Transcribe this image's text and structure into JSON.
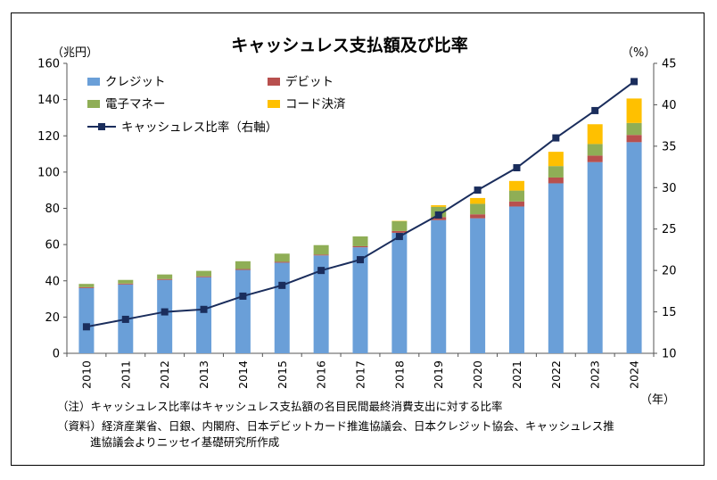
{
  "chart_data": {
    "type": "bar",
    "stacked": true,
    "title": "キャッシュレス支払額及び比率",
    "ylabel_left": "（兆円）",
    "ylabel_right": "（%）",
    "xlabel": "（年）",
    "categories": [
      "2010",
      "2011",
      "2012",
      "2013",
      "2014",
      "2015",
      "2016",
      "2017",
      "2018",
      "2019",
      "2020",
      "2021",
      "2022",
      "2023",
      "2024"
    ],
    "ylim": [
      0,
      160
    ],
    "yticks": [
      0,
      20,
      40,
      60,
      80,
      100,
      120,
      140,
      160
    ],
    "y2lim": [
      10,
      45
    ],
    "y2ticks": [
      10,
      15,
      20,
      25,
      30,
      35,
      40,
      45
    ],
    "grid": false,
    "legend_position": "top-left",
    "series": [
      {
        "name": "クレジット",
        "type": "bar",
        "color": "#6a9fd8",
        "values": [
          36,
          38,
          40.5,
          42,
          46,
          50,
          54,
          58.5,
          66.5,
          73.5,
          74.5,
          81,
          93.8,
          105.5,
          116.5
        ]
      },
      {
        "name": "デビット",
        "type": "bar",
        "color": "#b8504e",
        "values": [
          0.5,
          0.5,
          0.5,
          0.5,
          0.5,
          0.5,
          0.5,
          0.6,
          1,
          1.7,
          2.2,
          2.8,
          3.2,
          3.6,
          4
        ]
      },
      {
        "name": "電子マネー",
        "type": "bar",
        "color": "#8fae56",
        "values": [
          1.8,
          2,
          2.5,
          3,
          4.3,
          4.5,
          5.2,
          5.4,
          5.4,
          5.6,
          5.8,
          6,
          6.3,
          6.4,
          6.6
        ]
      },
      {
        "name": "コード決済",
        "type": "bar",
        "color": "#ffc000",
        "values": [
          0,
          0,
          0,
          0,
          0,
          0,
          0,
          0,
          0.2,
          0.9,
          3.2,
          5.3,
          7.9,
          10.9,
          13.5
        ]
      },
      {
        "name": "キャッシュレス比率（右軸）",
        "type": "line",
        "axis": "right",
        "color": "#1a2d5c",
        "values": [
          13.2,
          14.1,
          15.0,
          15.3,
          16.9,
          18.2,
          20.0,
          21.3,
          24.1,
          26.7,
          29.7,
          32.4,
          36.0,
          39.3,
          42.8
        ]
      }
    ]
  },
  "notes": {
    "line1": "（注）キャッシュレス比率はキャッシュレス支払額の名目民間最終消費支出に対する比率",
    "line2": "（資料）経済産業省、日銀、内閣府、日本デビットカード推進協議会、日本クレジット協会、キャッシュレス推",
    "line3": "進協議会よりニッセイ基礎研究所作成"
  }
}
